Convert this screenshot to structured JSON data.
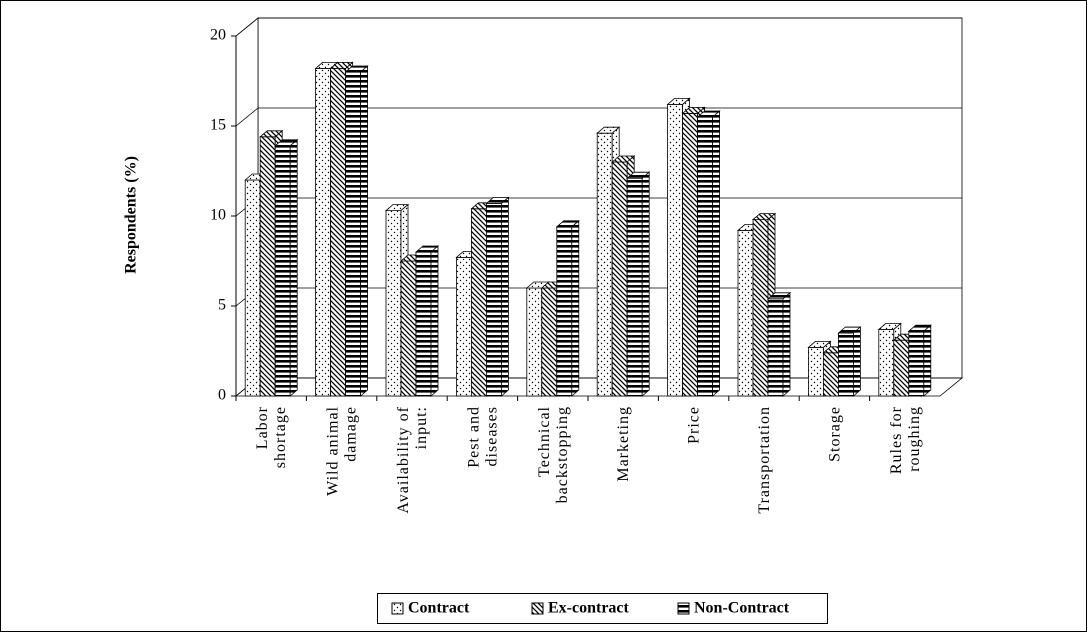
{
  "chart_data": {
    "type": "bar3d",
    "y_label": "Respondents (%)",
    "categories": [
      "Labor\nshortage",
      "Wild animal\ndamage",
      "Availability of\ninput:",
      "Pest and\ndiseases",
      "Technical\nbackstopping",
      "Marketing",
      "Price",
      "Transportation",
      "Storage",
      "Rules for\nroughing"
    ],
    "series": [
      {
        "name": "Contract",
        "values": [
          12.0,
          18.2,
          10.3,
          7.7,
          6.0,
          14.6,
          16.2,
          9.2,
          2.7,
          3.7
        ]
      },
      {
        "name": "Ex-contract",
        "values": [
          14.4,
          18.2,
          7.5,
          10.4,
          6.0,
          13.0,
          15.7,
          9.8,
          2.4,
          3.1
        ]
      },
      {
        "name": "Non-Contract",
        "values": [
          13.9,
          18.0,
          8.0,
          10.7,
          9.4,
          12.1,
          15.5,
          5.4,
          3.5,
          3.6
        ]
      }
    ],
    "ylim": [
      0,
      20
    ],
    "yticks": [
      0,
      5,
      10,
      15,
      20
    ],
    "grid": true
  }
}
